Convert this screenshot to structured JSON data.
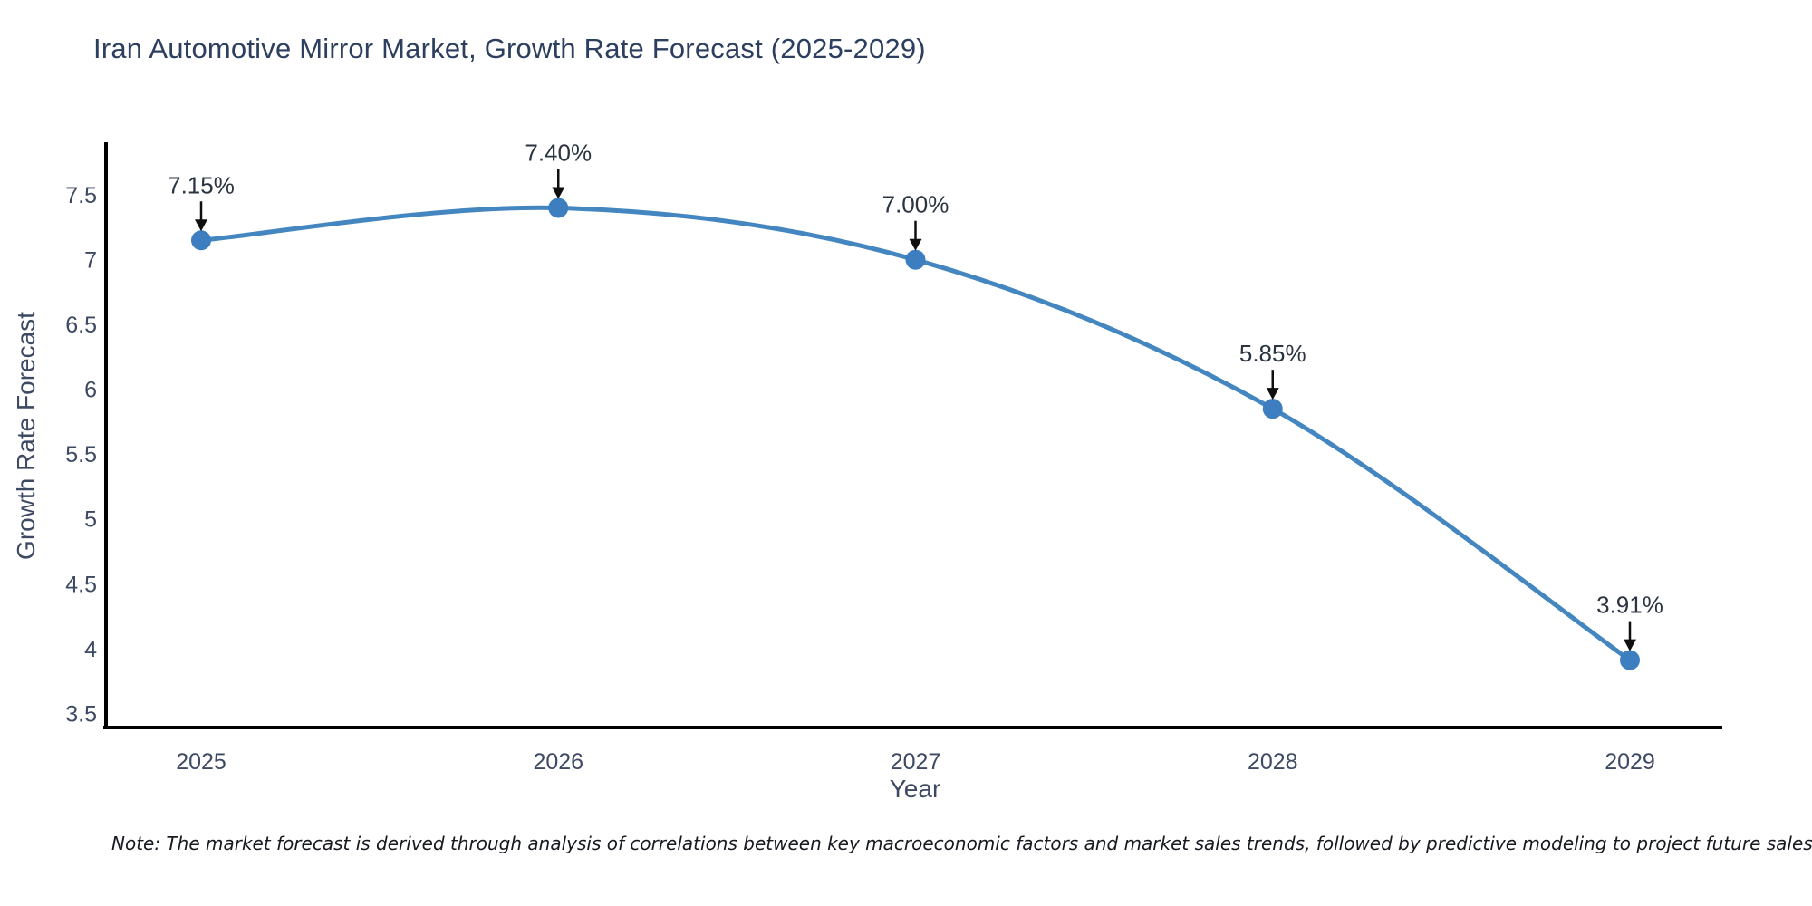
{
  "title": "Iran Automotive Mirror Market, Growth Rate Forecast (2025-2029)",
  "note": "Note: The market forecast is derived through analysis of correlations between key macroeconomic factors and market sales trends, followed by predictive modeling to project future sales",
  "colors": {
    "title": "#2d3f5e",
    "tick_text": "#3e4a63",
    "line": "#4486c0",
    "marker": "#3c7ebf",
    "arrow": "#0f0f0f",
    "annotation_text": "#2b3442",
    "axis_line": "#000000"
  },
  "chart_data": {
    "type": "line",
    "title": "Iran Automotive Mirror Market, Growth Rate Forecast (2025-2029)",
    "xlabel": "Year",
    "ylabel": "Growth Rate Forecast",
    "x": [
      2025,
      2026,
      2027,
      2028,
      2029
    ],
    "values": [
      7.15,
      7.4,
      7.0,
      5.85,
      3.91
    ],
    "point_labels": [
      "7.15%",
      "7.40%",
      "7.00%",
      "5.85%",
      "3.91%"
    ],
    "series": [
      {
        "name": "Growth Rate Forecast",
        "values": [
          7.15,
          7.4,
          7.0,
          5.85,
          3.91
        ]
      }
    ],
    "yticks": [
      3.5,
      4,
      4.5,
      5,
      5.5,
      6,
      6.5,
      7,
      7.5
    ],
    "ylim": [
      3.39,
      7.9
    ],
    "grid": false,
    "legend": "none",
    "line_style": "spline",
    "marker_style": "circle",
    "annotation_arrows": "down"
  }
}
